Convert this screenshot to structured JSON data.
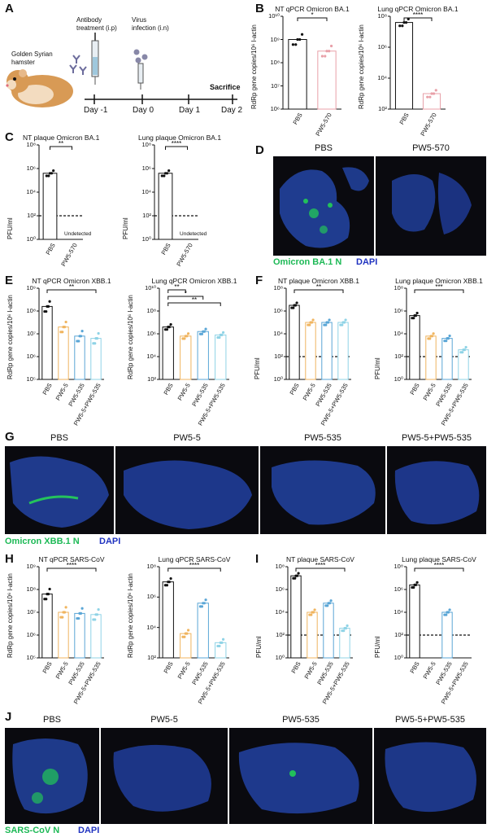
{
  "panels": {
    "A": {
      "label": "A",
      "hamster": "Golden Syrian\nhamster",
      "antibody": "Antibody\ntreatment (i.p)",
      "virus": "Virus\ninfection (i.n)",
      "sacrifice": "Sacrifice",
      "days": [
        "Day -1",
        "Day 0",
        "Day 1",
        "Day 2"
      ]
    },
    "B": {
      "label": "B"
    },
    "C": {
      "label": "C"
    },
    "D": {
      "label": "D",
      "images": [
        "PBS",
        "PW5-570"
      ],
      "legend_green": "Omicron BA.1 N",
      "legend_blue": "DAPI"
    },
    "E": {
      "label": "E"
    },
    "F": {
      "label": "F"
    },
    "G": {
      "label": "G",
      "images": [
        "PBS",
        "PW5-5",
        "PW5-535",
        "PW5-5+PW5-535"
      ],
      "legend_green": "Omicron XBB.1 N",
      "legend_blue": "DAPI"
    },
    "H": {
      "label": "H"
    },
    "I": {
      "label": "I"
    },
    "J": {
      "label": "J",
      "images": [
        "PBS",
        "PW5-5",
        "PW5-535",
        "PW5-5+PW5-535"
      ],
      "legend_green": "SARS-CoV N",
      "legend_blue": "DAPI"
    }
  },
  "colors": {
    "pbs": "#111111",
    "pw5_570": "#e8a0a8",
    "pw5_5": "#f0b560",
    "pw5_535": "#5aa6d6",
    "combo": "#8fd3e6",
    "green": "#1db956",
    "blue": "#2033c0"
  },
  "chart_data": [
    {
      "id": "B1",
      "type": "bar",
      "title": "NT qPCR Omicron BA.1",
      "ylabel": "RdRp gene copies/10⁶ l-actin",
      "yscale": "log",
      "ylim_exp": [
        6,
        10
      ],
      "yticks": [
        "10⁶",
        "10⁷",
        "10⁸",
        "10⁹",
        "10¹⁰"
      ],
      "categories": [
        "PBS",
        "PW5-570"
      ],
      "values_exp": [
        9.0,
        8.5
      ],
      "sig": [
        {
          "label": "*",
          "from": 0,
          "to": 1
        }
      ],
      "undetected": []
    },
    {
      "id": "B2",
      "type": "bar",
      "title": "Lung qPCR Omicron BA.1",
      "ylabel": "RdRp gene copies/10⁶ l-actin",
      "yscale": "log",
      "ylim_exp": [
        2,
        8
      ],
      "yticks": [
        "10²",
        "10⁴",
        "10⁶",
        "10⁸"
      ],
      "categories": [
        "PBS",
        "PW5-570"
      ],
      "values_exp": [
        7.6,
        3.0
      ],
      "sig": [
        {
          "label": "****",
          "from": 0,
          "to": 1
        }
      ],
      "undetected": []
    },
    {
      "id": "C1",
      "type": "bar",
      "title": "NT plaque Omicron BA.1",
      "ylabel": "PFU/ml",
      "yscale": "log",
      "ylim_exp": [
        0,
        8
      ],
      "yticks": [
        "10⁰",
        "10²",
        "10⁴",
        "10⁶",
        "10⁸"
      ],
      "categories": [
        "PBS",
        "PW5-570"
      ],
      "values_exp": [
        5.6,
        null
      ],
      "sig": [
        {
          "label": "**",
          "from": 0,
          "to": 1
        }
      ],
      "undetected": [
        "Undetected"
      ],
      "dashed_exp": 2
    },
    {
      "id": "C2",
      "type": "bar",
      "title": "Lung plaque Omicron BA.1",
      "ylabel": "PFU/ml",
      "yscale": "log",
      "ylim_exp": [
        0,
        8
      ],
      "yticks": [
        "10⁰",
        "10²",
        "10⁴",
        "10⁶",
        "10⁸"
      ],
      "categories": [
        "PBS",
        "PW5-570"
      ],
      "values_exp": [
        5.6,
        null
      ],
      "sig": [
        {
          "label": "****",
          "from": 0,
          "to": 1
        }
      ],
      "undetected": [
        "Undetected"
      ],
      "dashed_exp": 2
    },
    {
      "id": "E1",
      "type": "bar",
      "title": "NT qPCR Omicron XBB.1",
      "ylabel": "RdRp gene copies/10⁶ l-actin",
      "yscale": "log",
      "ylim_exp": [
        5,
        9
      ],
      "yticks": [
        "10⁵",
        "10⁶",
        "10⁷",
        "10⁸",
        "10⁹"
      ],
      "categories": [
        "PBS",
        "PW5-5",
        "PW5-535",
        "PW5-5+PW5-535"
      ],
      "values_exp": [
        8.2,
        7.3,
        6.9,
        6.8
      ],
      "sig": [
        {
          "label": "**",
          "from": 0,
          "to": 3
        }
      ],
      "undetected": []
    },
    {
      "id": "E2",
      "type": "bar",
      "title": "Lung qPCR Omicron XBB.1",
      "ylabel": "RdRp gene copies/10⁶ l-actin",
      "yscale": "log",
      "ylim_exp": [
        2,
        10
      ],
      "yticks": [
        "10²",
        "10⁴",
        "10⁶",
        "10⁸",
        "10¹⁰"
      ],
      "categories": [
        "PBS",
        "PW5-5",
        "PW5-535",
        "PW5-5+PW5-535"
      ],
      "values_exp": [
        6.6,
        5.8,
        6.2,
        5.9
      ],
      "sig": [
        {
          "label": "**",
          "from": 0,
          "to": 1
        },
        {
          "label": "*",
          "from": 0,
          "to": 2
        },
        {
          "label": "**",
          "from": 0,
          "to": 3
        }
      ],
      "undetected": []
    },
    {
      "id": "F1",
      "type": "bar",
      "title": "NT plaque Omicron XBB.1",
      "ylabel": "PFU/ml",
      "yscale": "log",
      "ylim_exp": [
        0,
        8
      ],
      "yticks": [
        "10⁰",
        "10²",
        "10⁴",
        "10⁶",
        "10⁸"
      ],
      "categories": [
        "PBS",
        "PW5-5",
        "PW5-535",
        "PW5-5+PW5-535"
      ],
      "values_exp": [
        6.5,
        5.0,
        5.0,
        5.0
      ],
      "sig": [
        {
          "label": "**",
          "from": 0,
          "to": 3
        }
      ],
      "undetected": [],
      "dashed_exp": 2
    },
    {
      "id": "F2",
      "type": "bar",
      "title": "Lung plaque Omicron XBB.1",
      "ylabel": "PFU/ml",
      "yscale": "log",
      "ylim_exp": [
        0,
        8
      ],
      "yticks": [
        "10⁰",
        "10²",
        "10⁴",
        "10⁶",
        "10⁸"
      ],
      "categories": [
        "PBS",
        "PW5-5",
        "PW5-535",
        "PW5-5+PW5-535"
      ],
      "values_exp": [
        5.6,
        3.8,
        3.6,
        2.6
      ],
      "sig": [
        {
          "label": "***",
          "from": 0,
          "to": 3
        }
      ],
      "undetected": [],
      "dashed_exp": 2
    },
    {
      "id": "H1",
      "type": "bar",
      "title": "NT qPCR SARS-CoV",
      "ylabel": "RdRp gene copies/10⁶ l-actin",
      "yscale": "log",
      "ylim_exp": [
        5,
        9
      ],
      "yticks": [
        "10⁵",
        "10⁶",
        "10⁷",
        "10⁸",
        "10⁹"
      ],
      "categories": [
        "PBS",
        "PW5-5",
        "PW5-535",
        "PW5-5+PW5-535"
      ],
      "values_exp": [
        7.8,
        7.0,
        6.95,
        6.9
      ],
      "sig": [
        {
          "label": "****",
          "from": 0,
          "to": 3
        }
      ],
      "undetected": []
    },
    {
      "id": "H2",
      "type": "bar",
      "title": "Lung qPCR SARS-CoV",
      "ylabel": "RdRp gene copies/10⁶ l-actin",
      "yscale": "log",
      "ylim_exp": [
        2,
        8
      ],
      "yticks": [
        "10²",
        "10⁴",
        "10⁶",
        "10⁸"
      ],
      "categories": [
        "PBS",
        "PW5-5",
        "PW5-535",
        "PW5-5+PW5-535"
      ],
      "values_exp": [
        7.0,
        3.6,
        5.6,
        3.0
      ],
      "sig": [
        {
          "label": "****",
          "from": 0,
          "to": 3
        }
      ],
      "undetected": []
    },
    {
      "id": "I1",
      "type": "bar",
      "title": "NT plaque SARS-CoV",
      "ylabel": "PFU/ml",
      "yscale": "log",
      "ylim_exp": [
        0,
        8
      ],
      "yticks": [
        "10⁰",
        "10²",
        "10⁴",
        "10⁶",
        "10⁸"
      ],
      "categories": [
        "PBS",
        "PW5-5",
        "PW5-535",
        "PW5-5+PW5-535"
      ],
      "values_exp": [
        7.2,
        4.0,
        4.8,
        2.6
      ],
      "sig": [
        {
          "label": "****",
          "from": 0,
          "to": 3
        }
      ],
      "undetected": [],
      "dashed_exp": 2
    },
    {
      "id": "I2",
      "type": "bar",
      "title": "Lung plaque SARS-CoV",
      "ylabel": "PFU/ml",
      "yscale": "log",
      "ylim_exp": [
        0,
        8
      ],
      "yticks": [
        "10⁰",
        "10²",
        "10⁴",
        "10⁶",
        "10⁸"
      ],
      "categories": [
        "PBS",
        "PW5-5",
        "PW5-535",
        "PW5-5+PW5-535"
      ],
      "values_exp": [
        6.4,
        null,
        4.0,
        null
      ],
      "sig": [
        {
          "label": "****",
          "from": 0,
          "to": 3
        }
      ],
      "undetected": [],
      "dashed_exp": 2
    }
  ]
}
